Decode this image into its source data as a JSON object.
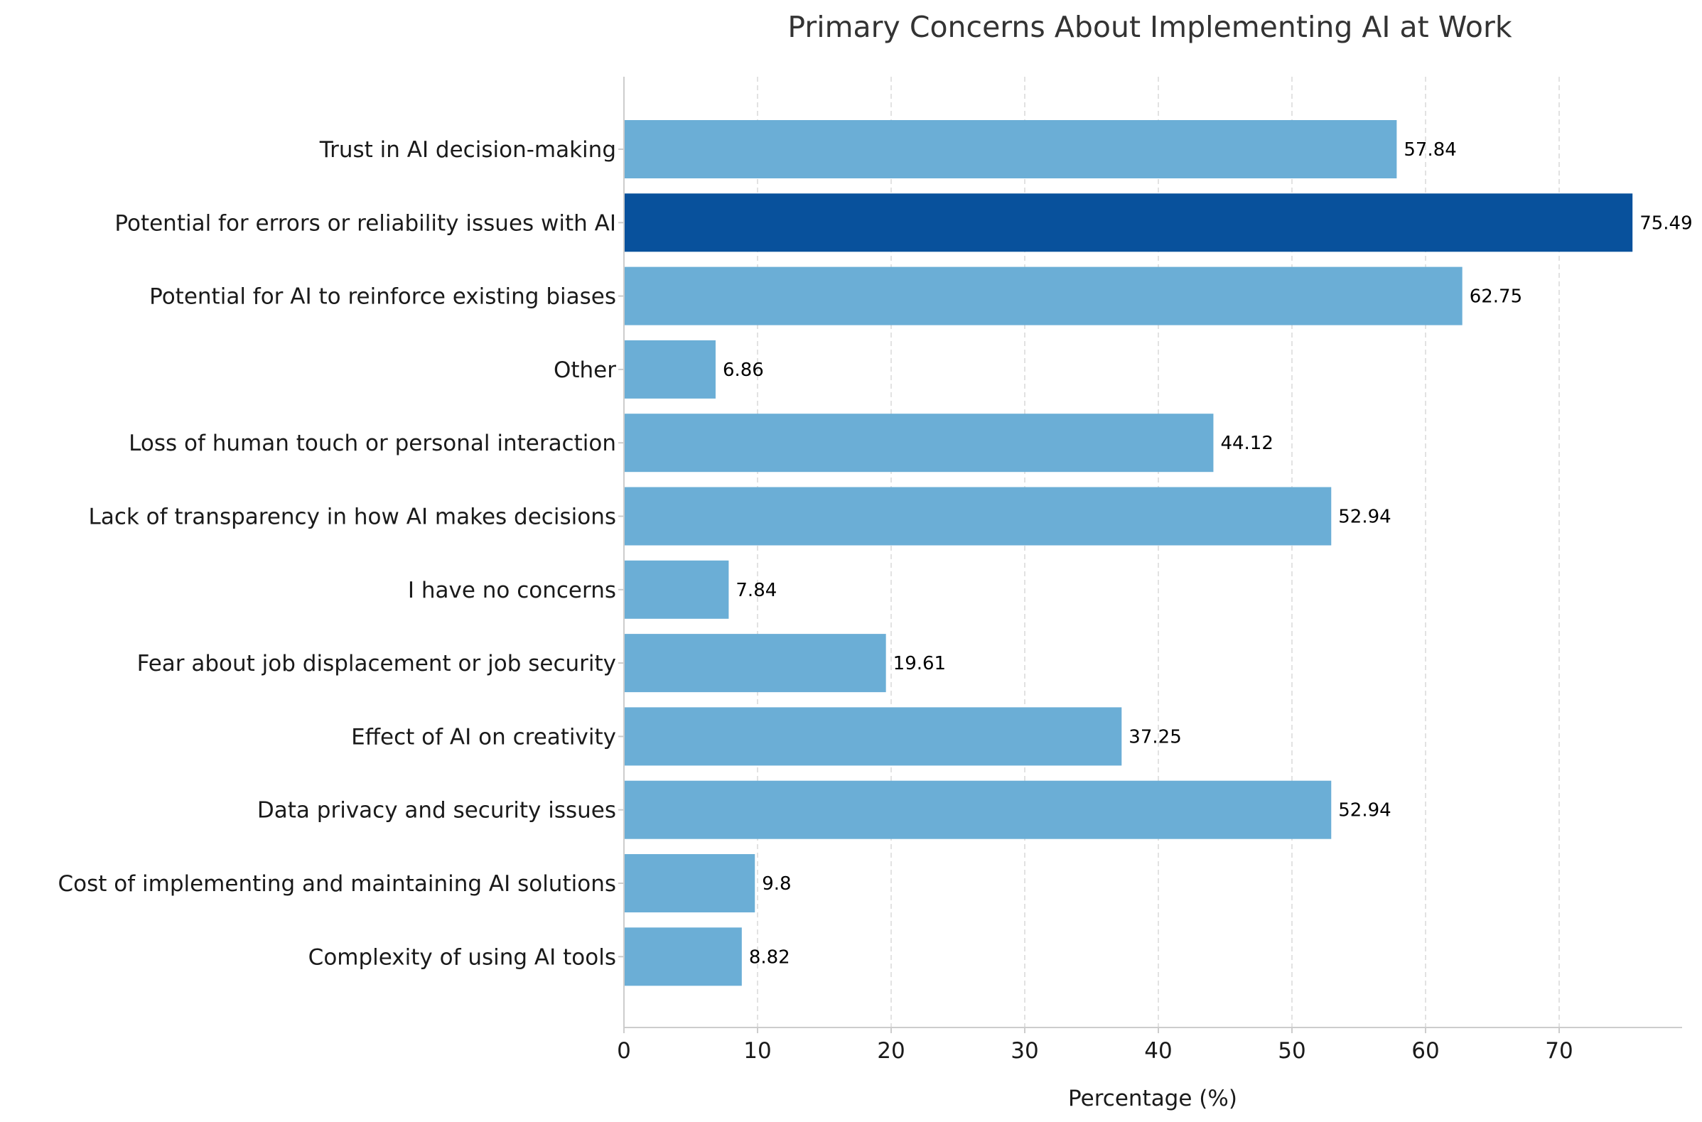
{
  "chart_data": {
    "type": "bar",
    "orientation": "horizontal",
    "title": "Primary Concerns About Implementing AI at Work",
    "xlabel": "Percentage (%)",
    "ylabel": "",
    "xlim": [
      0,
      79.3
    ],
    "xticks": [
      0,
      10,
      20,
      30,
      40,
      50,
      60,
      70
    ],
    "grid": "x-dashed",
    "categories": [
      "Trust in AI decision-making",
      "Potential for errors or reliability issues with AI",
      "Potential for AI to reinforce existing biases",
      "Other",
      "Loss of human touch or personal interaction",
      "Lack of transparency in how AI makes decisions",
      "I have no concerns",
      "Fear about job displacement or job security",
      "Effect of AI on creativity",
      "Data privacy and security issues",
      "Cost of implementing and maintaining AI solutions",
      "Complexity of using AI tools"
    ],
    "values": [
      57.84,
      75.49,
      62.75,
      6.86,
      44.12,
      52.94,
      7.84,
      19.61,
      37.25,
      52.94,
      9.8,
      8.82
    ],
    "value_labels": [
      "57.84",
      "75.49",
      "62.75",
      "6.86",
      "44.12",
      "52.94",
      "7.84",
      "19.61",
      "37.25",
      "52.94",
      "9.8",
      "8.82"
    ],
    "highlight_index": 1,
    "colors": {
      "bar": "#6baed6",
      "highlight": "#08519c",
      "grid": "#d9d9d9",
      "axis": "#cccccc"
    }
  }
}
